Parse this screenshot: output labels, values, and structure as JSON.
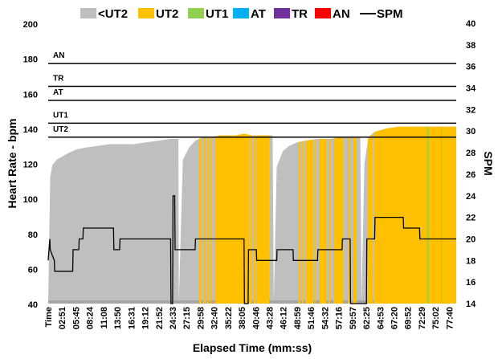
{
  "chart_data": {
    "type": "area",
    "title": "",
    "xlabel": "Elapsed Time (mm:ss)",
    "ylabel": "Heart Rate - bpm",
    "y2label": "SPM",
    "ylim": [
      40,
      200
    ],
    "y2lim": [
      14,
      40
    ],
    "yticks": [
      40,
      60,
      80,
      100,
      120,
      140,
      160,
      180,
      200
    ],
    "y2ticks": [
      14,
      16,
      18,
      20,
      22,
      24,
      26,
      28,
      30,
      32,
      34,
      36,
      38,
      40
    ],
    "x_categories": [
      "Time",
      "02:51",
      "05:45",
      "08:24",
      "11:08",
      "13:50",
      "16:31",
      "19:12",
      "21:52",
      "24:33",
      "27:15",
      "29:58",
      "32:40",
      "35:22",
      "38:05",
      "40:46",
      "43:28",
      "46:12",
      "48:59",
      "51:46",
      "54:32",
      "57:16",
      "59:57",
      "62:25",
      "64:53",
      "67:20",
      "69:52",
      "72:29",
      "75:02",
      "77:40"
    ],
    "legend": [
      {
        "label": "<UT2",
        "color": "#bfbfbf",
        "kind": "box"
      },
      {
        "label": "UT2",
        "color": "#ffc000",
        "kind": "box"
      },
      {
        "label": "UT1",
        "color": "#92d050",
        "kind": "box"
      },
      {
        "label": "AT",
        "color": "#00b0f0",
        "kind": "box"
      },
      {
        "label": "TR",
        "color": "#7030a0",
        "kind": "box"
      },
      {
        "label": "AN",
        "color": "#ff0000",
        "kind": "box"
      },
      {
        "label": "SPM",
        "color": "#000000",
        "kind": "line"
      }
    ],
    "zones": [
      {
        "label": "AN",
        "lower_bpm": 177
      },
      {
        "label": "TR",
        "lower_bpm": 164
      },
      {
        "label": "AT",
        "lower_bpm": 156
      },
      {
        "label": "UT1",
        "lower_bpm": 143
      },
      {
        "label": "UT2",
        "lower_bpm": 135
      }
    ],
    "heart_rate_series": {
      "name": "Heart Rate",
      "x_fraction": [
        0.0,
        0.005,
        0.01,
        0.02,
        0.035,
        0.05,
        0.07,
        0.09,
        0.12,
        0.15,
        0.18,
        0.21,
        0.24,
        0.27,
        0.3,
        0.319,
        0.32,
        0.33,
        0.345,
        0.36,
        0.38,
        0.4,
        0.42,
        0.44,
        0.46,
        0.48,
        0.5,
        0.52,
        0.54,
        0.55,
        0.553,
        0.56,
        0.575,
        0.59,
        0.61,
        0.63,
        0.66,
        0.69,
        0.72,
        0.74,
        0.76,
        0.765,
        0.768,
        0.775,
        0.785,
        0.8,
        0.83,
        0.86,
        0.9,
        0.94,
        0.98,
        1.0
      ],
      "values": [
        40,
        112,
        119,
        122,
        124,
        126,
        128,
        129,
        130,
        131,
        131,
        131,
        132,
        133,
        134,
        134,
        40,
        122,
        129,
        133,
        135,
        135,
        136,
        136,
        136,
        137,
        136,
        136,
        136,
        136,
        40,
        118,
        127,
        130,
        132,
        133,
        134,
        134,
        135,
        135,
        135,
        135,
        40,
        120,
        135,
        138,
        140,
        141,
        141,
        141,
        141,
        141
      ]
    },
    "zone_band_series": [
      {
        "name": "UT2",
        "color": "#ffc000",
        "segments": [
          [
            0.37,
            0.375
          ],
          [
            0.38,
            0.386
          ],
          [
            0.389,
            0.393
          ],
          [
            0.397,
            0.4
          ],
          [
            0.409,
            0.49
          ],
          [
            0.493,
            0.499
          ],
          [
            0.503,
            0.508
          ],
          [
            0.509,
            0.541
          ],
          [
            0.613,
            0.618
          ],
          [
            0.622,
            0.625
          ],
          [
            0.631,
            0.65
          ],
          [
            0.653,
            0.655
          ],
          [
            0.665,
            0.682
          ],
          [
            0.687,
            0.691
          ],
          [
            0.699,
            0.722
          ],
          [
            0.734,
            0.74
          ],
          [
            0.747,
            0.755
          ],
          [
            0.782,
            0.795
          ],
          [
            0.797,
            1.0
          ]
        ]
      },
      {
        "name": "UT1",
        "color": "#92d050",
        "segments": [
          [
            0.929,
            0.932
          ],
          [
            0.963,
            0.965
          ]
        ]
      }
    ],
    "spm_series": {
      "name": "SPM",
      "x_fraction": [
        0.0,
        0.004,
        0.005,
        0.015,
        0.016,
        0.06,
        0.061,
        0.075,
        0.076,
        0.085,
        0.086,
        0.16,
        0.161,
        0.175,
        0.176,
        0.3,
        0.301,
        0.305,
        0.306,
        0.31,
        0.311,
        0.36,
        0.361,
        0.48,
        0.481,
        0.49,
        0.491,
        0.51,
        0.511,
        0.56,
        0.561,
        0.6,
        0.601,
        0.66,
        0.661,
        0.72,
        0.721,
        0.74,
        0.741,
        0.78,
        0.781,
        0.8,
        0.801,
        0.87,
        0.871,
        0.91,
        0.911,
        0.98,
        0.981,
        1.0
      ],
      "values": [
        18,
        20,
        19,
        18,
        17,
        17,
        19,
        19,
        20,
        20,
        21,
        21,
        19,
        19,
        20,
        20,
        14,
        14,
        24,
        24,
        19,
        19,
        20,
        20,
        14,
        14,
        19,
        19,
        18,
        18,
        19,
        19,
        18,
        18,
        19,
        19,
        20,
        20,
        14,
        14,
        20,
        20,
        22,
        22,
        21,
        21,
        20,
        20,
        20,
        20
      ]
    }
  }
}
